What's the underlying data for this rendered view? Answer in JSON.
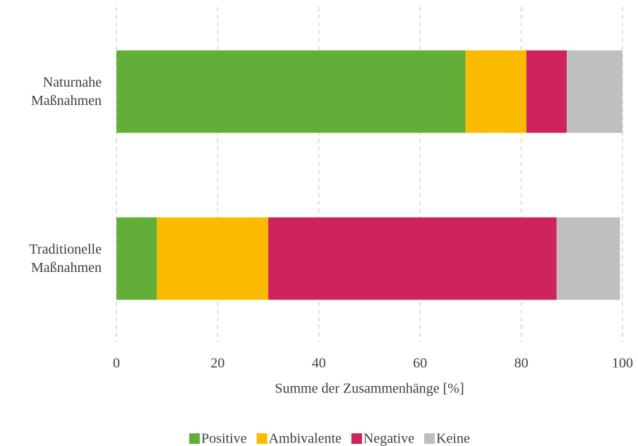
{
  "chart_data": {
    "type": "stacked_barh",
    "xlabel": "Summe der Zusammenhänge [%]",
    "categories": [
      "Naturnahe Maßnahmen",
      "Traditionelle Maßnahmen"
    ],
    "series": [
      {
        "name": "Positive",
        "color": "#62ae38",
        "values": [
          69,
          8
        ]
      },
      {
        "name": "Ambivalente",
        "color": "#fbbb00",
        "values": [
          12,
          22
        ]
      },
      {
        "name": "Negative",
        "color": "#cf235e",
        "values": [
          8,
          57
        ]
      },
      {
        "name": "Keine",
        "color": "#bfbfbf",
        "values": [
          11,
          12.5
        ]
      }
    ],
    "xlim": [
      0,
      100
    ],
    "xticks": [
      0,
      20,
      40,
      60,
      80,
      100
    ],
    "grid": true,
    "legend": "bottom"
  }
}
